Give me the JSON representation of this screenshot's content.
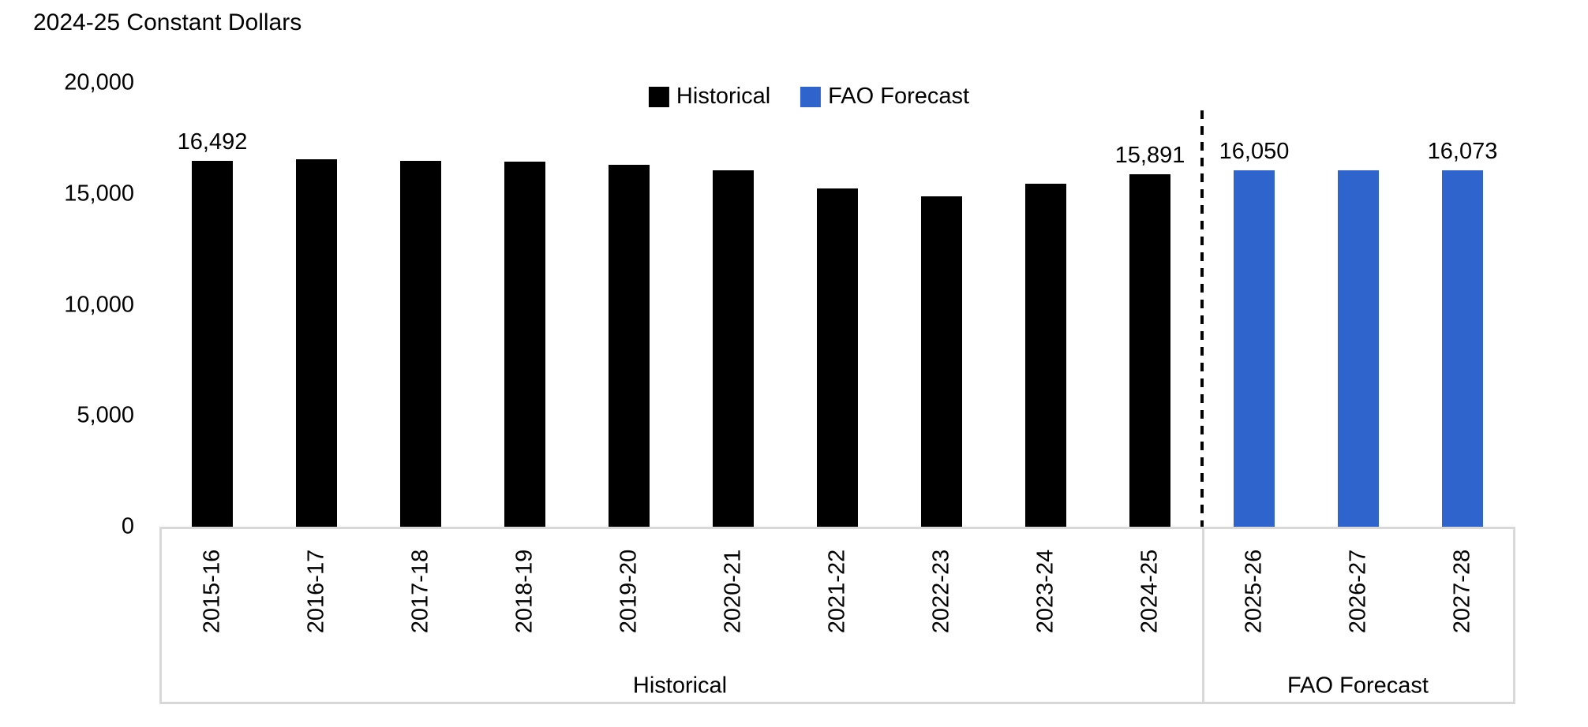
{
  "chart_data": {
    "type": "bar",
    "title": "2024-25 Constant Dollars",
    "categories": [
      "2015-16",
      "2016-17",
      "2017-18",
      "2018-19",
      "2019-20",
      "2020-21",
      "2021-22",
      "2022-23",
      "2023-24",
      "2024-25",
      "2025-26",
      "2026-27",
      "2027-28"
    ],
    "values": [
      16492,
      16570,
      16500,
      16450,
      16310,
      16070,
      15250,
      14890,
      15470,
      15891,
      16050,
      16060,
      16073
    ],
    "series_assignment": [
      "Historical",
      "Historical",
      "Historical",
      "Historical",
      "Historical",
      "Historical",
      "Historical",
      "Historical",
      "Historical",
      "Historical",
      "FAO Forecast",
      "FAO Forecast",
      "FAO Forecast"
    ],
    "bar_labels": {
      "0": "16,492",
      "9": "15,891",
      "10": "16,050",
      "12": "16,073"
    },
    "legend": [
      {
        "name": "Historical",
        "color": "#000000"
      },
      {
        "name": "FAO Forecast",
        "color": "#3064cd"
      }
    ],
    "ylim": [
      0,
      20000
    ],
    "yticks": [
      {
        "value": 20000,
        "label": "20,000"
      },
      {
        "value": 15000,
        "label": "15,000"
      },
      {
        "value": 10000,
        "label": "10,000"
      },
      {
        "value": 5000,
        "label": "5,000"
      },
      {
        "value": 0,
        "label": "0"
      }
    ],
    "group_labels": [
      {
        "label": "Historical",
        "series": "Historical"
      },
      {
        "label": "FAO Forecast",
        "series": "FAO Forecast"
      }
    ],
    "separator_after_index": 9,
    "grid": "off",
    "legend_position": "top",
    "xlabel": "",
    "ylabel": ""
  },
  "colors": {
    "historical": "#000000",
    "forecast": "#3064cd",
    "axis": "#d8d8d8",
    "text": "#000000"
  }
}
